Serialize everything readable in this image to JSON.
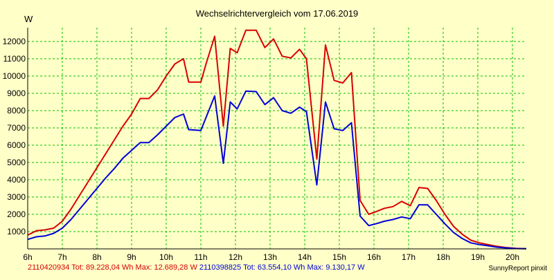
{
  "chart_data": {
    "type": "line",
    "title": "Wechselrichtervergleich vom 17.06.2019",
    "ylabel": "W",
    "xlabel": "",
    "xlim": [
      6,
      20.4
    ],
    "ylim": [
      0,
      12800
    ],
    "grid": true,
    "x_ticks": [
      6,
      7,
      8,
      9,
      10,
      11,
      12,
      13,
      14,
      15,
      16,
      17,
      18,
      19,
      20
    ],
    "x_tick_labels": [
      "6h",
      "7h",
      "8h",
      "9h",
      "10h",
      "11h",
      "12h",
      "13h",
      "14h",
      "15h",
      "16h",
      "17h",
      "18h",
      "19h",
      "20h"
    ],
    "y_ticks": [
      1000,
      2000,
      3000,
      4000,
      5000,
      6000,
      7000,
      8000,
      9000,
      10000,
      11000,
      12000
    ],
    "x": [
      6,
      6.25,
      6.5,
      6.75,
      7,
      7.25,
      7.5,
      7.75,
      8,
      8.25,
      8.5,
      8.75,
      9,
      9.25,
      9.5,
      9.75,
      10,
      10.25,
      10.5,
      10.65,
      11,
      11.15,
      11.4,
      11.65,
      11.85,
      12.05,
      12.3,
      12.6,
      12.85,
      13.1,
      13.35,
      13.6,
      13.85,
      14.05,
      14.35,
      14.6,
      14.85,
      15.1,
      15.35,
      15.6,
      15.85,
      16.05,
      16.3,
      16.55,
      16.8,
      17.05,
      17.3,
      17.55,
      17.8,
      18.05,
      18.3,
      18.55,
      18.8,
      19.05,
      19.3,
      19.55,
      19.8,
      20.1,
      20.4
    ],
    "series": [
      {
        "name": "2110420934",
        "color": "#d80000",
        "legend": "2110420934 Tot: 89.228,04 Wh Max: 12.689,28 W",
        "values": [
          800,
          1050,
          1100,
          1200,
          1600,
          2300,
          3100,
          3900,
          4700,
          5500,
          6300,
          7100,
          7800,
          8700,
          8700,
          9200,
          10000,
          10700,
          11000,
          9650,
          9650,
          10700,
          12300,
          7100,
          11600,
          11350,
          12650,
          12650,
          11650,
          12150,
          11150,
          11050,
          11550,
          11000,
          5200,
          11800,
          9750,
          9600,
          10200,
          2800,
          2000,
          2150,
          2350,
          2450,
          2750,
          2500,
          3550,
          3500,
          2800,
          2000,
          1300,
          850,
          500,
          350,
          250,
          150,
          80,
          30,
          10
        ]
      },
      {
        "name": "2110398825",
        "color": "#0000d8",
        "legend": "2110398825 Tot: 63.554,10 Wh Max: 9.130,17 W",
        "values": [
          550,
          700,
          750,
          900,
          1200,
          1700,
          2300,
          2900,
          3500,
          4100,
          4650,
          5250,
          5700,
          6150,
          6150,
          6600,
          7100,
          7600,
          7800,
          6900,
          6850,
          7600,
          8850,
          4950,
          8500,
          8100,
          9130,
          9100,
          8350,
          8750,
          8000,
          7850,
          8200,
          7950,
          3700,
          8500,
          6950,
          6850,
          7300,
          1900,
          1350,
          1450,
          1600,
          1700,
          1850,
          1750,
          2550,
          2550,
          2000,
          1450,
          950,
          600,
          350,
          250,
          180,
          100,
          60,
          20,
          10
        ]
      }
    ]
  },
  "footer": {
    "series1_label": "2110420934 Tot: 89.228,04 Wh Max: 12.689,28 W",
    "series2_label": "2110398825 Tot: 63.554,10 Wh Max: 9.130,17 W",
    "credit": "SunnyReport pinxit"
  },
  "colors": {
    "background": "#ffffc8",
    "grid": "#00c000",
    "series1": "#d80000",
    "series2": "#0000d8"
  }
}
